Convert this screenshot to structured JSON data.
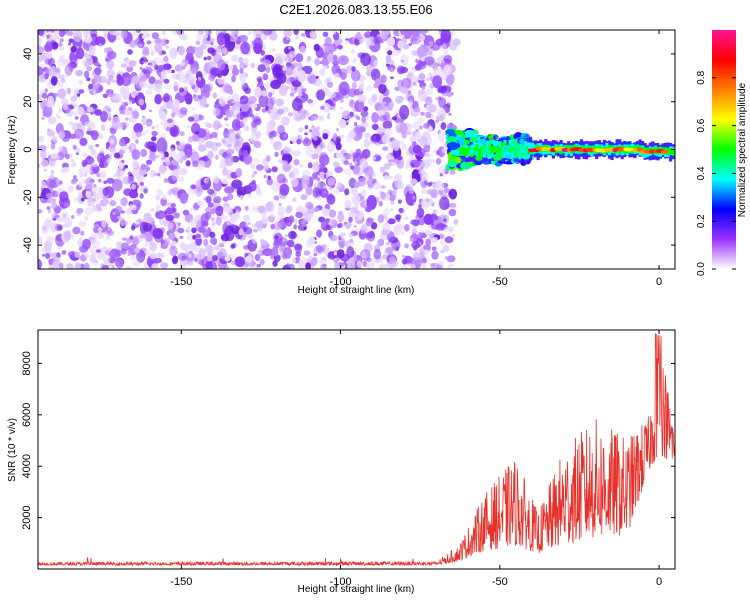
{
  "title": "C2E1.2026.083.13.55.E06",
  "chart_data": [
    {
      "type": "heatmap",
      "xlabel": "Height of straight line (km)",
      "ylabel": "Frequency (Hz)",
      "xlim": [
        -195,
        5
      ],
      "ylim": [
        -50,
        50
      ],
      "xticks": [
        -150,
        -100,
        -50,
        0
      ],
      "yticks": [
        -40,
        -20,
        0,
        20,
        40
      ],
      "noise_region": {
        "x_range": [
          -195,
          -65
        ],
        "freq_range": [
          -50,
          50
        ],
        "amplitude_range": [
          0.05,
          0.3
        ]
      },
      "signal_band": {
        "x_range": [
          -65,
          5
        ],
        "center_freq_hz": 0,
        "width_hz": 6,
        "peak_amplitude": 1.0
      },
      "colorbar": {
        "label": "Normalized spectral amplitude",
        "range": [
          0,
          1
        ],
        "ticks": [
          0.0,
          0.2,
          0.4,
          0.6,
          0.8
        ],
        "tick_labels": [
          "0.0",
          "0.2",
          "0.4",
          "0.6",
          "0.8"
        ],
        "colors": [
          "#ffffff",
          "#9b30ff",
          "#0000ff",
          "#00ffff",
          "#00ff00",
          "#ffff00",
          "#ff8000",
          "#ff0000",
          "#ff1493"
        ]
      }
    },
    {
      "type": "line",
      "xlabel": "Height of straight line (km)",
      "ylabel": "SNR (10 * v/v)",
      "xlim": [
        -195,
        5
      ],
      "ylim": [
        0,
        9300
      ],
      "xticks": [
        -150,
        -100,
        -50,
        0
      ],
      "yticks": [
        2000,
        4000,
        6000,
        8000
      ],
      "color": "#e8302a",
      "segments": [
        {
          "x": -195,
          "baseline": 150,
          "spread": 120
        },
        {
          "x": -70,
          "baseline": 150,
          "spread": 150
        },
        {
          "x": -63,
          "baseline": 300,
          "spread": 600
        },
        {
          "x": -55,
          "baseline": 700,
          "spread": 2200
        },
        {
          "x": -45,
          "baseline": 900,
          "spread": 3500
        },
        {
          "x": -38,
          "baseline": 600,
          "spread": 1600
        },
        {
          "x": -30,
          "baseline": 900,
          "spread": 3800
        },
        {
          "x": -20,
          "baseline": 1200,
          "spread": 4700
        },
        {
          "x": -10,
          "baseline": 1300,
          "spread": 3800
        },
        {
          "x": -3,
          "baseline": 3800,
          "spread": 2200
        },
        {
          "x": 0,
          "baseline": 4500,
          "spread": 4800
        },
        {
          "x": 5,
          "baseline": 4000,
          "spread": 1500
        }
      ]
    }
  ]
}
